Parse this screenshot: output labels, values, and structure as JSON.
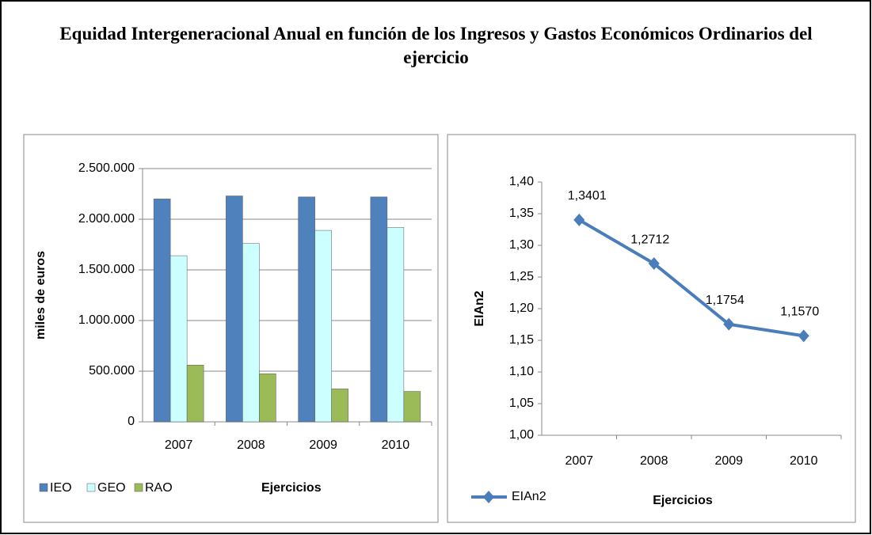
{
  "title": "Equidad Intergeneracional Anual en función de los Ingresos y Gastos Económicos Ordinarios del ejercicio",
  "chart_data": [
    {
      "type": "bar",
      "xlabel": "Ejercicios",
      "ylabel": "miles de euros",
      "categories": [
        "2007",
        "2008",
        "2009",
        "2010"
      ],
      "series": [
        {
          "name": "IEO",
          "color": "#4f81bd",
          "values": [
            2200000,
            2230000,
            2220000,
            2220000
          ]
        },
        {
          "name": "GEO",
          "color": "#ccffff",
          "values": [
            1640000,
            1760000,
            1890000,
            1920000
          ]
        },
        {
          "name": "RAO",
          "color": "#9bbb59",
          "values": [
            560000,
            475000,
            325000,
            300000
          ]
        }
      ],
      "ylim": [
        0,
        2500000
      ],
      "yticks": [
        0,
        {
          "value": 500000,
          "label": "500.000"
        },
        {
          "value": 1000000,
          "label": "1.000.000"
        },
        {
          "value": 1500000,
          "label": "1.500.000"
        },
        {
          "value": 2000000,
          "label": "2.000.000"
        },
        {
          "value": 2500000,
          "label": "2.500.000"
        }
      ],
      "grid": true
    },
    {
      "type": "line",
      "xlabel": "Ejercicios",
      "ylabel": "EIAn2",
      "categories": [
        "2007",
        "2008",
        "2009",
        "2010"
      ],
      "series": [
        {
          "name": "EIAn2",
          "color": "#4a7ebb",
          "values": [
            1.3401,
            1.2712,
            1.1754,
            1.157
          ],
          "value_labels": [
            "1,3401",
            "1,2712",
            "1,1754",
            "1,1570"
          ]
        }
      ],
      "ylim": [
        1.0,
        1.4
      ],
      "yticks": [
        {
          "value": 1.0,
          "label": "1,00"
        },
        {
          "value": 1.05,
          "label": "1,05"
        },
        {
          "value": 1.1,
          "label": "1,10"
        },
        {
          "value": 1.15,
          "label": "1,15"
        },
        {
          "value": 1.2,
          "label": "1,20"
        },
        {
          "value": 1.25,
          "label": "1,25"
        },
        {
          "value": 1.3,
          "label": "1,30"
        },
        {
          "value": 1.35,
          "label": "1,35"
        },
        {
          "value": 1.4,
          "label": "1,40"
        }
      ],
      "grid": false
    }
  ]
}
